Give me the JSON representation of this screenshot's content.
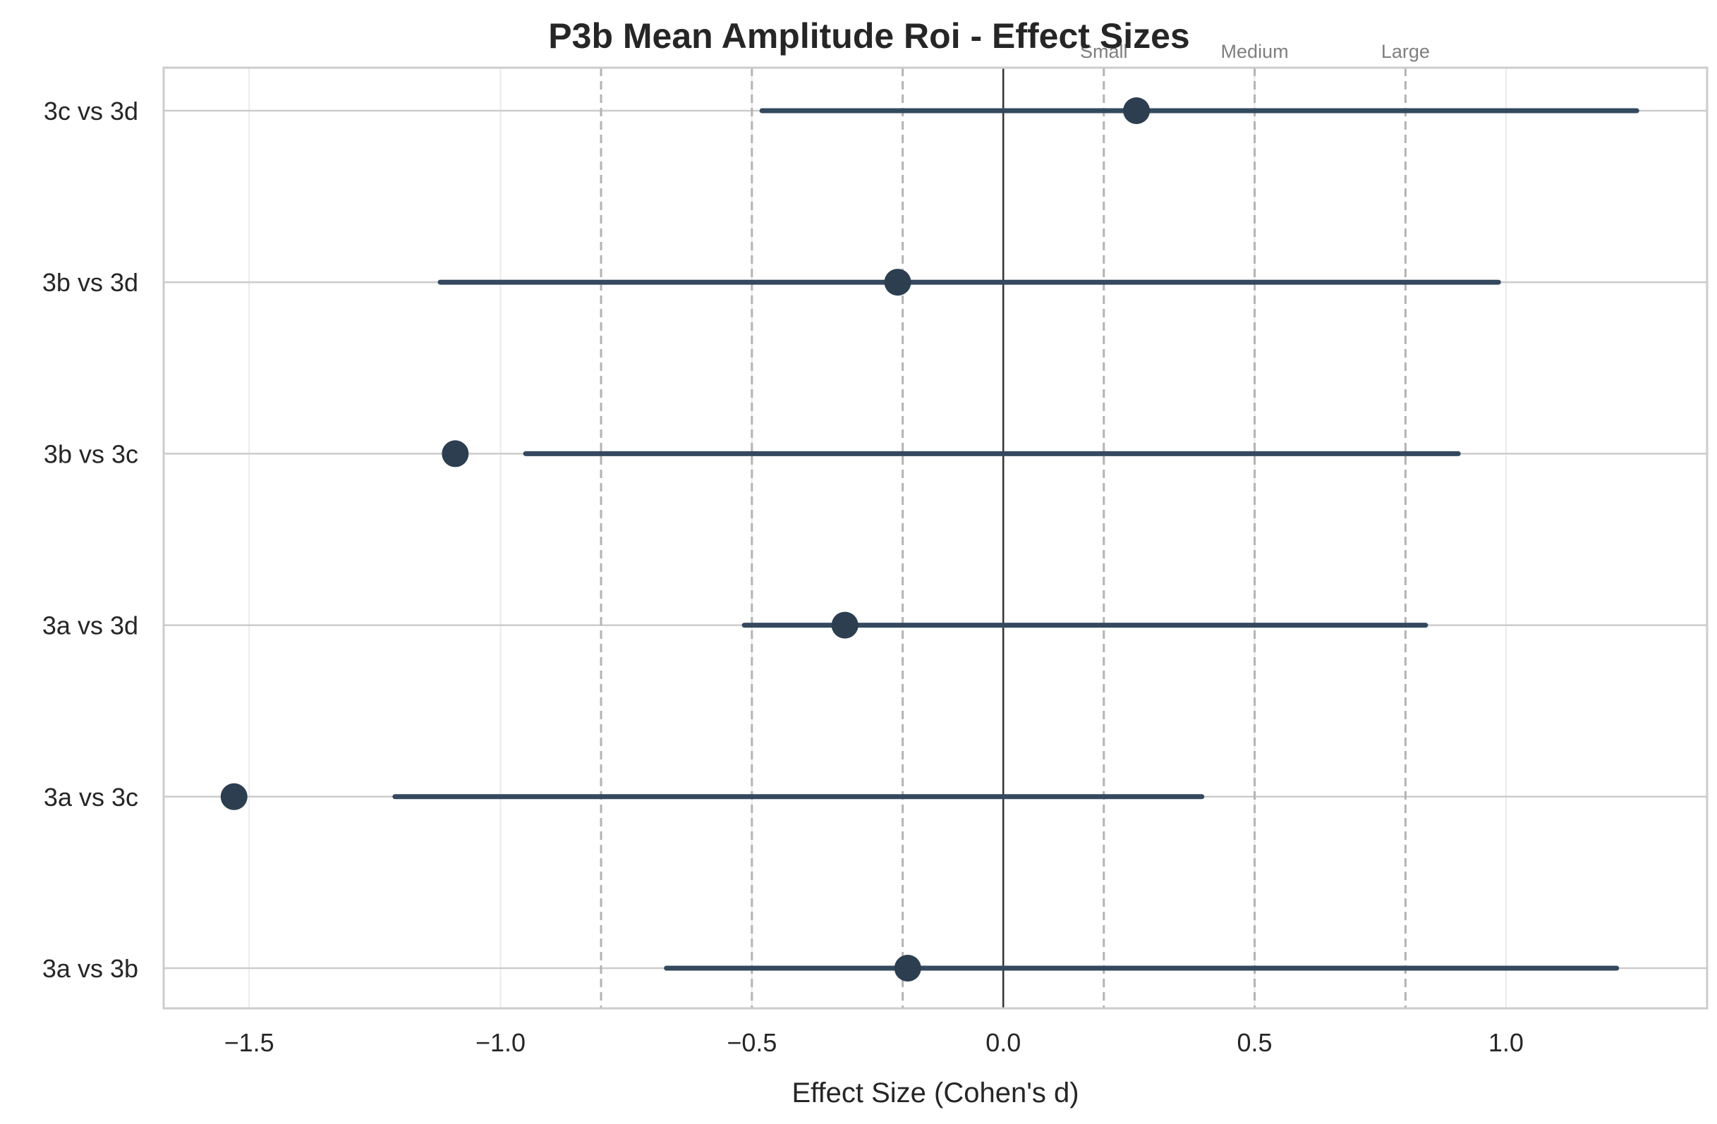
{
  "chart_data": {
    "type": "forest",
    "title": "P3b Mean Amplitude Roi - Effect Sizes",
    "xlabel": "Effect Size (Cohen's d)",
    "ylabel": "",
    "xlim": [
      -1.67,
      1.4
    ],
    "xticks": [
      -1.5,
      -1.0,
      -0.5,
      0.0,
      0.5,
      1.0
    ],
    "xtick_labels": [
      "−1.5",
      "−1.0",
      "−0.5",
      "0.0",
      "0.5",
      "1.0"
    ],
    "grid": true,
    "zero_line": 0.0,
    "reference_lines": [
      -0.8,
      -0.5,
      -0.2,
      0.2,
      0.5,
      0.8
    ],
    "reference_labels": [
      {
        "label": "Small",
        "x": 0.2
      },
      {
        "label": "Medium",
        "x": 0.5
      },
      {
        "label": "Large",
        "x": 0.8
      }
    ],
    "marker_color": "#2c3e50",
    "ci_color": "#34495e",
    "comparisons": [
      {
        "label": "3c vs 3d",
        "d": 0.265,
        "ci_low": -0.48,
        "ci_high": 1.26
      },
      {
        "label": "3b vs 3d",
        "d": -0.21,
        "ci_low": -1.12,
        "ci_high": 0.985
      },
      {
        "label": "3b vs 3c",
        "d": -1.09,
        "ci_low": -0.95,
        "ci_high": 0.905
      },
      {
        "label": "3a vs 3d",
        "d": -0.315,
        "ci_low": -0.515,
        "ci_high": 0.84
      },
      {
        "label": "3a vs 3c",
        "d": -1.53,
        "ci_low": -1.21,
        "ci_high": 0.395
      },
      {
        "label": "3a vs 3b",
        "d": -0.19,
        "ci_low": -0.67,
        "ci_high": 1.22
      }
    ]
  }
}
